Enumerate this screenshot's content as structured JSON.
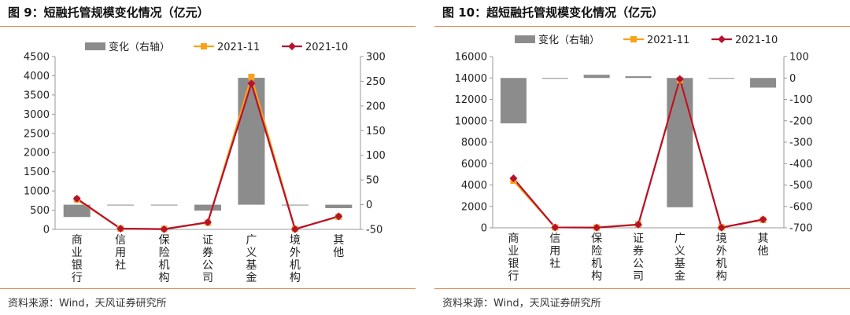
{
  "chart_data": [
    {
      "type": "bar+line",
      "title": "图 9：短融托管规模变化情况（亿元）",
      "source": "资料来源：Wind，天风证券研究所",
      "categories": [
        "商业银行",
        "信用社",
        "保险机构",
        "证券公司",
        "广义基金",
        "境外机构",
        "其他"
      ],
      "legend": [
        "变化（右轴）",
        "2021-11",
        "2021-10"
      ],
      "legend_position": "top",
      "y_left": {
        "lim": [
          0,
          4500
        ],
        "ticks": [
          "0",
          "500",
          "1000",
          "1500",
          "2000",
          "2500",
          "3000",
          "3500",
          "4000",
          "4500"
        ]
      },
      "y_right": {
        "lim": [
          -50,
          300
        ],
        "ticks": [
          "-50",
          "0",
          "50",
          "100",
          "150",
          "200",
          "250",
          "300"
        ]
      },
      "series": [
        {
          "name": "变化（右轴）",
          "type": "bar",
          "axis": "right",
          "color": "#8c8c8c",
          "values": [
            -25,
            -1,
            -1,
            -12,
            257,
            -1,
            -7
          ]
        },
        {
          "name": "2021-11",
          "type": "line",
          "axis": "left",
          "color": "#f7a21b",
          "marker": "square",
          "values": [
            780,
            20,
            10,
            175,
            3970,
            10,
            330
          ]
        },
        {
          "name": "2021-10",
          "type": "line",
          "axis": "left",
          "color": "#b5122f",
          "marker": "diamond",
          "values": [
            800,
            20,
            5,
            185,
            3800,
            5,
            340
          ]
        }
      ]
    },
    {
      "type": "bar+line",
      "title": "图 10：超短融托管规模变化情况（亿元）",
      "source": "资料来源：Wind，天风证券研究所",
      "categories": [
        "商业银行",
        "信用社",
        "保险机构",
        "证券公司",
        "广义基金",
        "境外机构",
        "其他"
      ],
      "legend": [
        "变化（右轴）",
        "2021-11",
        "2021-10"
      ],
      "legend_position": "top",
      "y_left": {
        "lim": [
          0,
          16000
        ],
        "ticks": [
          "0",
          "2000",
          "4000",
          "6000",
          "8000",
          "10000",
          "12000",
          "14000",
          "16000"
        ]
      },
      "y_right": {
        "lim": [
          -700,
          100
        ],
        "ticks": [
          "-700",
          "-600",
          "-500",
          "-400",
          "-300",
          "-200",
          "-100",
          "0",
          "100"
        ]
      },
      "series": [
        {
          "name": "变化（右轴）",
          "type": "bar",
          "axis": "right",
          "color": "#8c8c8c",
          "values": [
            -212,
            -2,
            15,
            8,
            -604,
            -1,
            -45
          ]
        },
        {
          "name": "2021-11",
          "type": "line",
          "axis": "left",
          "color": "#f7a21b",
          "marker": "square",
          "values": [
            4400,
            40,
            30,
            320,
            13800,
            40,
            740
          ]
        },
        {
          "name": "2021-10",
          "type": "line",
          "axis": "left",
          "color": "#b5122f",
          "marker": "diamond",
          "values": [
            4620,
            40,
            20,
            300,
            13900,
            20,
            780
          ]
        }
      ]
    }
  ]
}
